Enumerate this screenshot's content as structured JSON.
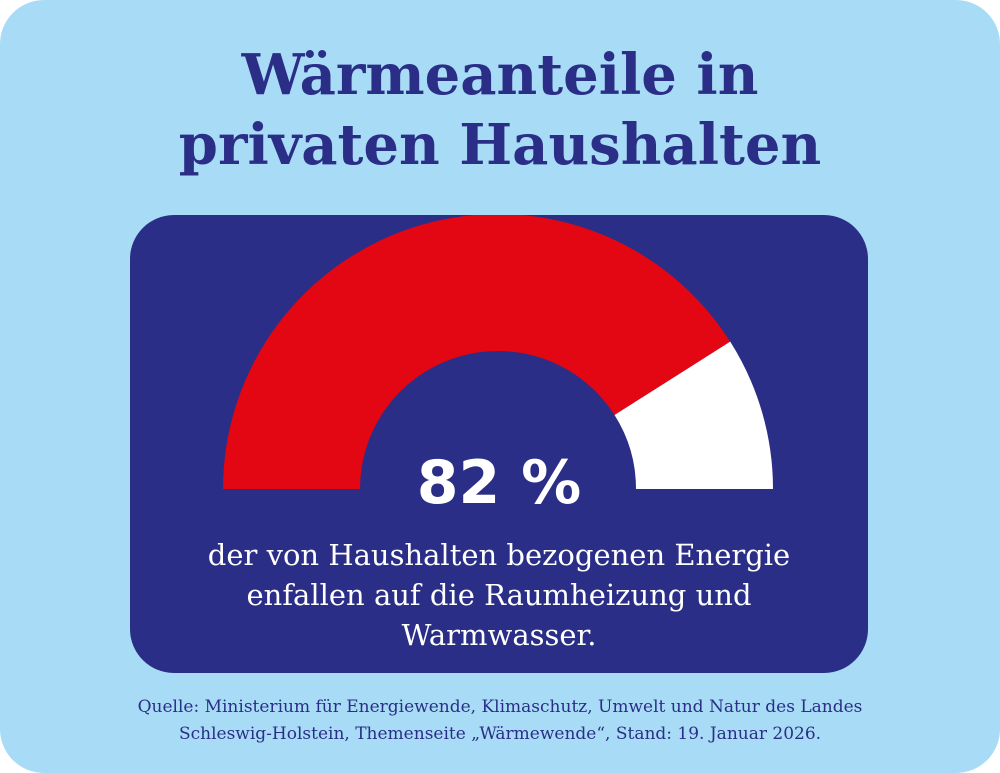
{
  "title_lines": [
    "Wärmeanteile in",
    "privaten Haushalten"
  ],
  "chart_data": {
    "type": "gauge",
    "value": 82,
    "max": 100,
    "value_label": "82 %",
    "description_lines": [
      "der von Haushalten bezogenen Energie",
      "enfallen auf die Raumheizung und",
      "Warmwasser."
    ]
  },
  "source_lines": [
    "Quelle: Ministerium für Energiewende, Klimaschutz, Umwelt und Natur des Landes",
    "Schleswig-Holstein, Themenseite „Wärmewende“, Stand: 19. Januar 2026."
  ],
  "colors": {
    "background": "#a8dcf6",
    "panel": "#2a2e87",
    "filled": "#e30613",
    "remainder": "#ffffff",
    "title": "#2a2e87"
  }
}
